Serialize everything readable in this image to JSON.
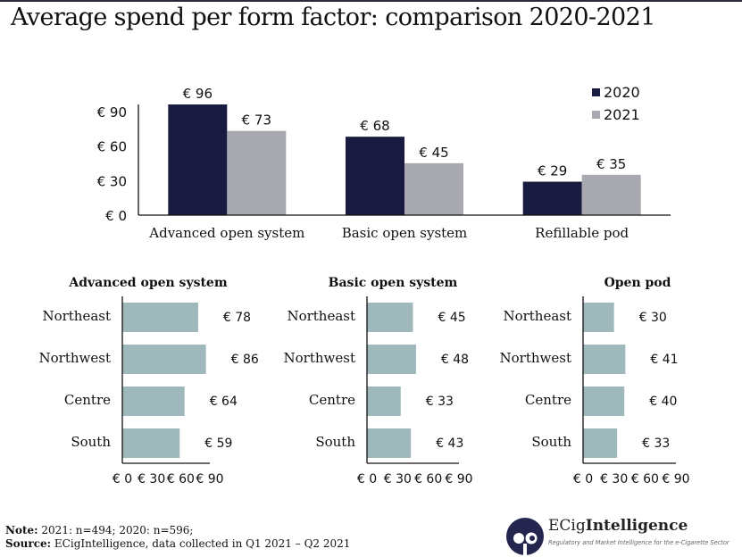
{
  "title": "Average spend per form factor: comparison 2020-2021",
  "colors": {
    "series_2020": "#191a3f",
    "series_2021": "#a7a8b0",
    "region_bar": "#9fb8bc",
    "axis": "#111111",
    "logo": "#25264f"
  },
  "chart_data": [
    {
      "type": "bar",
      "title": "",
      "categories": [
        "Advanced open system",
        "Basic open system",
        "Refillable pod"
      ],
      "series": [
        {
          "name": "2020",
          "values": [
            96,
            68,
            29
          ],
          "labels": [
            "€ 96",
            "€ 68",
            "€ 29"
          ]
        },
        {
          "name": "2021",
          "values": [
            73,
            45,
            35
          ],
          "labels": [
            "€ 73",
            "€ 45",
            "€ 35"
          ]
        }
      ],
      "yticks": [
        "€ 0",
        "€ 30",
        "€ 60",
        "€ 90"
      ],
      "ytick_values": [
        0,
        30,
        60,
        90
      ],
      "ylim": [
        0,
        100
      ],
      "xlabel": "",
      "ylabel": "",
      "grid": false,
      "legend": "top-right"
    },
    {
      "type": "bar",
      "orientation": "horizontal",
      "title": "Advanced open system",
      "categories": [
        "Northeast",
        "Northwest",
        "Centre",
        "South"
      ],
      "values": [
        78,
        86,
        64,
        59
      ],
      "labels": [
        "€ 78",
        "€ 86",
        "€ 64",
        "€ 59"
      ],
      "xticks": [
        "€ 0",
        "€ 30",
        "€ 60",
        "€ 90"
      ],
      "xtick_values": [
        0,
        30,
        60,
        90
      ],
      "xlim": [
        0,
        90
      ]
    },
    {
      "type": "bar",
      "orientation": "horizontal",
      "title": "Basic open system",
      "categories": [
        "Northeast",
        "Northwest",
        "Centre",
        "South"
      ],
      "values": [
        45,
        48,
        33,
        43
      ],
      "labels": [
        "€ 45",
        "€ 48",
        "€ 33",
        "€ 43"
      ],
      "xticks": [
        "€ 0",
        "€ 30",
        "€ 60",
        "€ 90"
      ],
      "xtick_values": [
        0,
        30,
        60,
        90
      ],
      "xlim": [
        0,
        90
      ]
    },
    {
      "type": "bar",
      "orientation": "horizontal",
      "title": "Open pod",
      "categories": [
        "Northeast",
        "Northwest",
        "Centre",
        "South"
      ],
      "values": [
        30,
        41,
        40,
        33
      ],
      "labels": [
        "€ 30",
        "€ 41",
        "€ 40",
        "€ 33"
      ],
      "xticks": [
        "€ 0",
        "€ 30",
        "€ 60",
        "€ 90"
      ],
      "xtick_values": [
        0,
        30,
        60,
        90
      ],
      "xlim": [
        0,
        90
      ]
    }
  ],
  "footer": {
    "note_label": "Note:",
    "note_text": " 2021: n=494; 2020: n=596;",
    "source_label": "Source:",
    "source_text": " ECigIntelligence, data collected in Q1 2021 – Q2 2021"
  },
  "logo": {
    "name_regular": "ECig",
    "name_bold": "Intelligence",
    "tagline": "Regulatory and Market Intelligence for the e-Cigarette Sector"
  }
}
